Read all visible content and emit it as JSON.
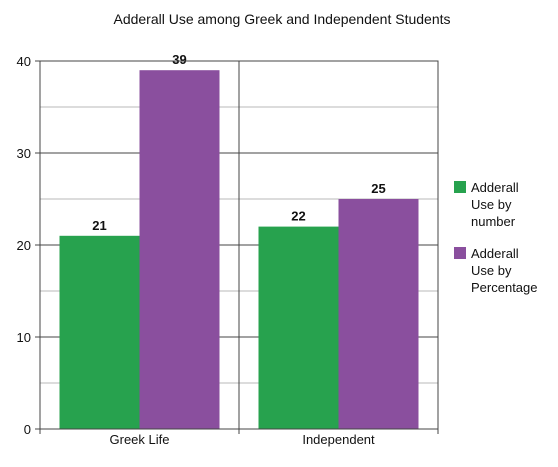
{
  "chart_data": {
    "type": "bar",
    "title": "Adderall Use among Greek and Independent Students",
    "categories": [
      "Greek Life",
      "Independent"
    ],
    "series": [
      {
        "name": "Adderall Use by number",
        "legend_lines": [
          "Adderall",
          "Use by",
          "number"
        ],
        "values": [
          21,
          22
        ],
        "color": "#27a24e"
      },
      {
        "name": "Adderall Use by Percentage",
        "legend_lines": [
          "Adderall",
          "Use by",
          "Percentage"
        ],
        "values": [
          39,
          25
        ],
        "color": "#8a4f9e"
      }
    ],
    "ylim": [
      0,
      40
    ],
    "yticks": [
      0,
      10,
      20,
      30,
      40
    ],
    "grid": true,
    "legend": "right"
  }
}
